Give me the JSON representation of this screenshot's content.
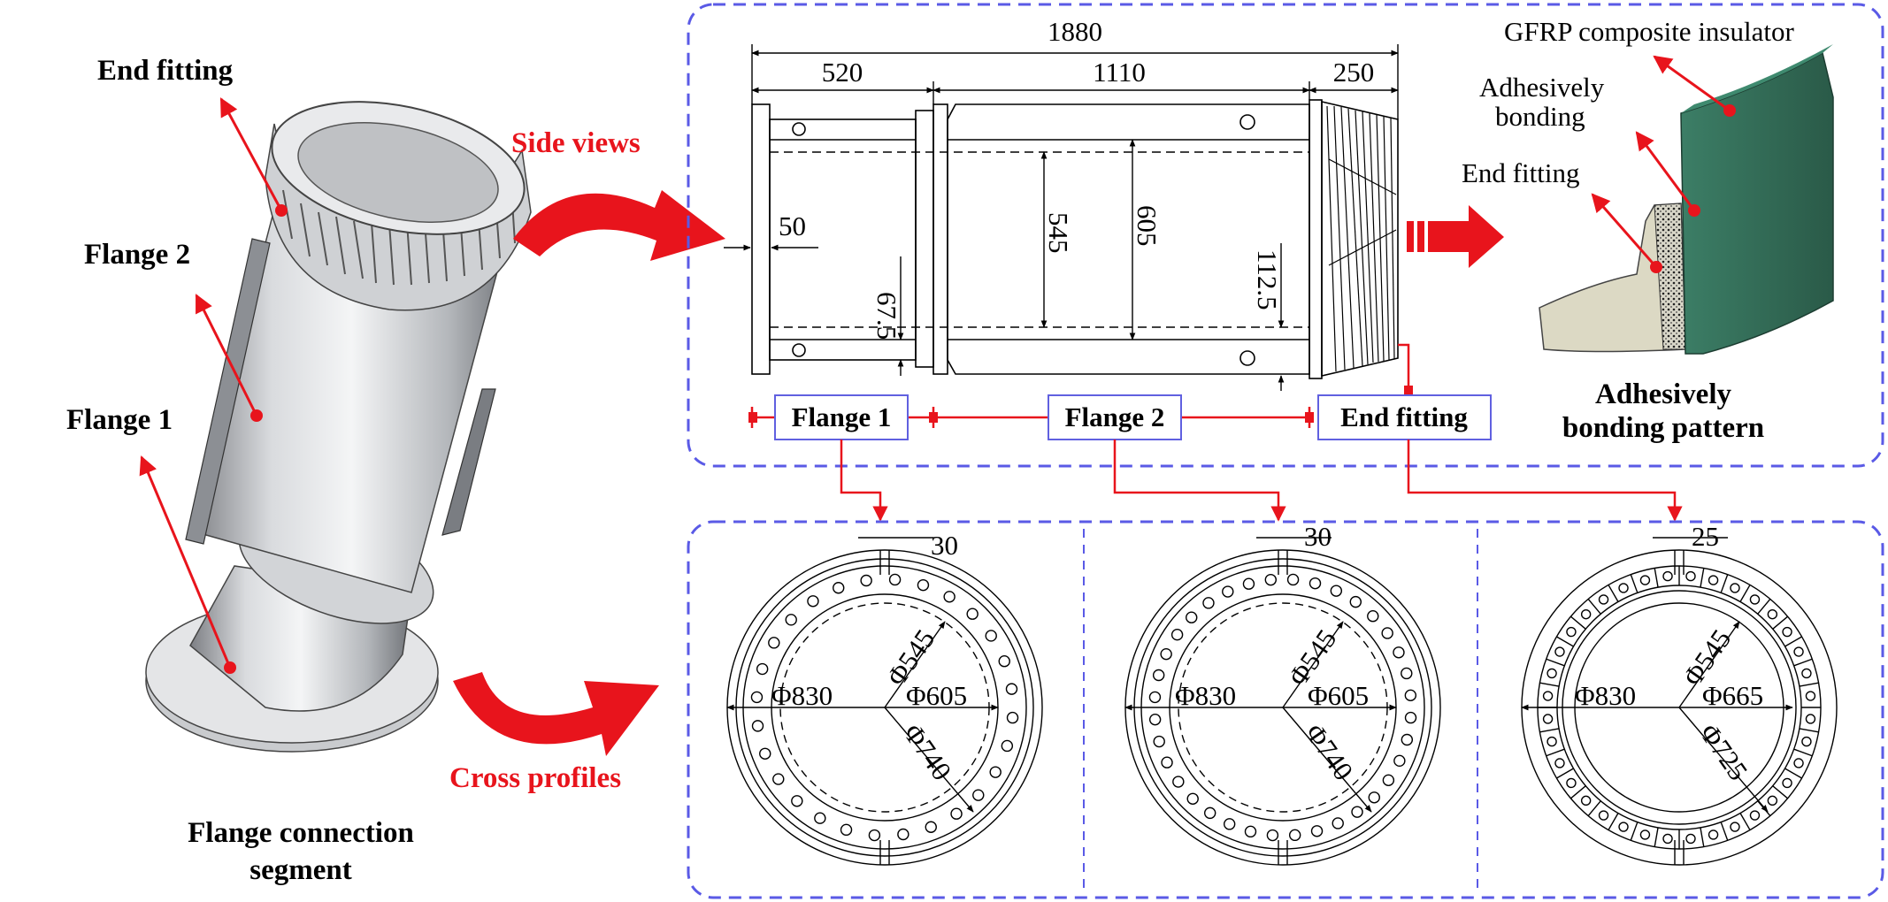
{
  "left_panel": {
    "label_end_fitting": "End fitting",
    "label_flange2": "Flange 2",
    "label_flange1": "Flange 1",
    "caption_line1": "Flange connection",
    "caption_line2": "segment"
  },
  "arrows": {
    "side_views": "Side views",
    "cross_profiles": "Cross profiles"
  },
  "side_view": {
    "dim_total": "1880",
    "dim_flange1": "520",
    "dim_flange2": "1110",
    "dim_end": "250",
    "dim_50": "50",
    "dim_675": "67.5",
    "dim_545": "545",
    "dim_605": "605",
    "dim_1125": "112.5",
    "box_flange1": "Flange 1",
    "box_flange2": "Flange 2",
    "box_end_fitting": "End fitting"
  },
  "bonding": {
    "label_gfrp": "GFRP composite insulator",
    "label_adhesive_line1": "Adhesively",
    "label_adhesive_line2": "bonding",
    "label_end_fitting": "End fitting",
    "caption_line1": "Adhesively",
    "caption_line2": "bonding pattern"
  },
  "cross_profiles": [
    {
      "top_dim": "30",
      "d_outer": "Φ830",
      "d_inner": "Φ545",
      "d_mid": "Φ605",
      "d_bolt": "Φ740"
    },
    {
      "top_dim": "30",
      "d_outer": "Φ830",
      "d_inner": "Φ545",
      "d_mid": "Φ605",
      "d_bolt": "Φ740"
    },
    {
      "top_dim": "25",
      "d_outer": "Φ830",
      "d_inner": "Φ545",
      "d_mid": "Φ665",
      "d_bolt": "Φ725"
    }
  ],
  "colors": {
    "red": "#e8141c",
    "blue_dash": "#5a5ae6",
    "box_border": "#6060e0",
    "insulator": "#2f6b55"
  }
}
